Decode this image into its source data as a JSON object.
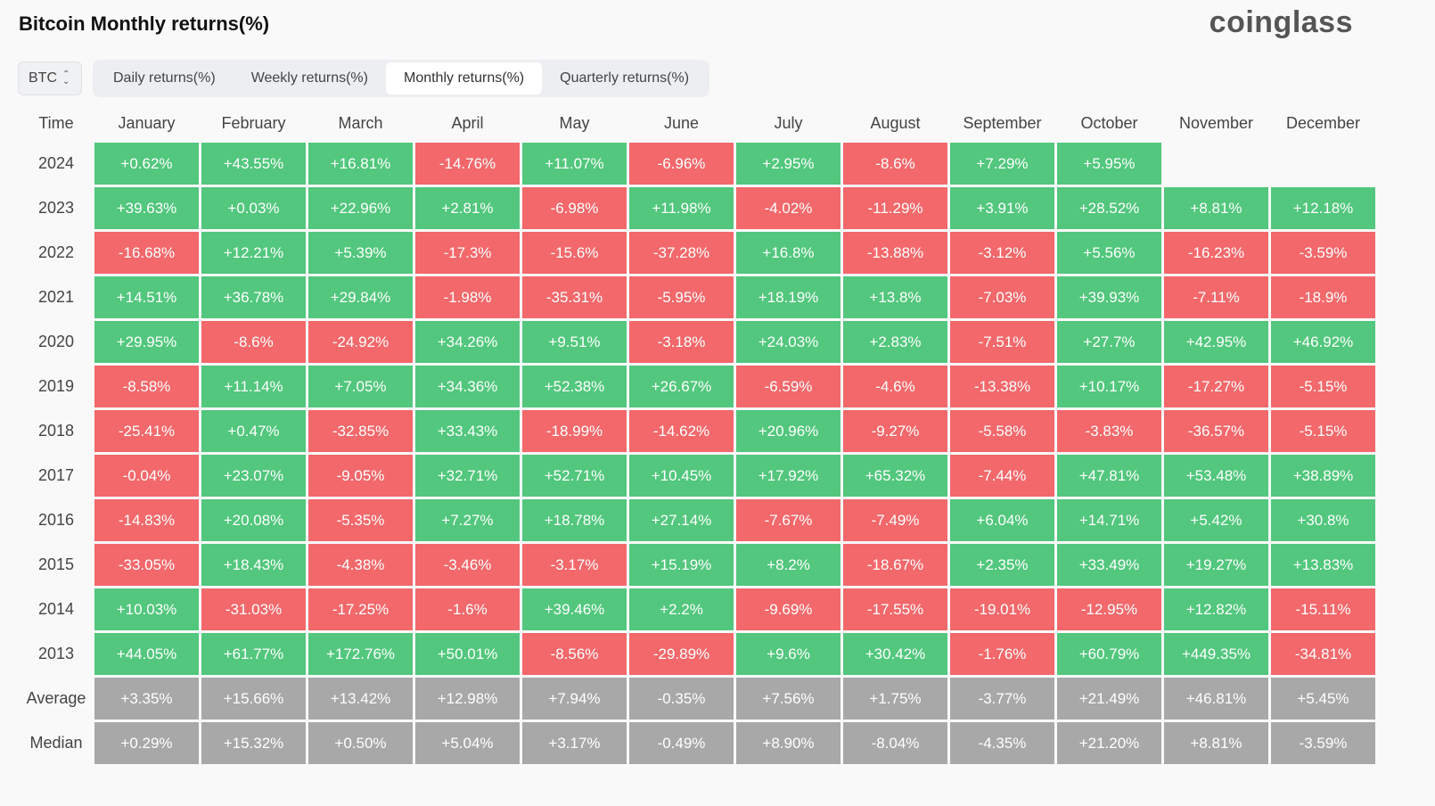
{
  "title": "Bitcoin Monthly returns(%)",
  "brand": "coinglass",
  "coin_select": {
    "value": "BTC",
    "icon": "chevron-updown-icon"
  },
  "tabs": [
    {
      "label": "Daily returns(%)",
      "active": false
    },
    {
      "label": "Weekly returns(%)",
      "active": false
    },
    {
      "label": "Monthly returns(%)",
      "active": true
    },
    {
      "label": "Quarterly returns(%)",
      "active": false
    }
  ],
  "colors": {
    "positive": "#52c77d",
    "negative": "#f2686b",
    "summary": "#a8a8a8"
  },
  "chart_data": {
    "type": "heatmap",
    "corner_label": "Time",
    "columns": [
      "January",
      "February",
      "March",
      "April",
      "May",
      "June",
      "July",
      "August",
      "September",
      "October",
      "November",
      "December"
    ],
    "rows": [
      {
        "label": "2024",
        "kind": "year",
        "values": [
          "+0.62%",
          "+43.55%",
          "+16.81%",
          "-14.76%",
          "+11.07%",
          "-6.96%",
          "+2.95%",
          "-8.6%",
          "+7.29%",
          "+5.95%",
          "",
          ""
        ]
      },
      {
        "label": "2023",
        "kind": "year",
        "values": [
          "+39.63%",
          "+0.03%",
          "+22.96%",
          "+2.81%",
          "-6.98%",
          "+11.98%",
          "-4.02%",
          "-11.29%",
          "+3.91%",
          "+28.52%",
          "+8.81%",
          "+12.18%"
        ]
      },
      {
        "label": "2022",
        "kind": "year",
        "values": [
          "-16.68%",
          "+12.21%",
          "+5.39%",
          "-17.3%",
          "-15.6%",
          "-37.28%",
          "+16.8%",
          "-13.88%",
          "-3.12%",
          "+5.56%",
          "-16.23%",
          "-3.59%"
        ]
      },
      {
        "label": "2021",
        "kind": "year",
        "values": [
          "+14.51%",
          "+36.78%",
          "+29.84%",
          "-1.98%",
          "-35.31%",
          "-5.95%",
          "+18.19%",
          "+13.8%",
          "-7.03%",
          "+39.93%",
          "-7.11%",
          "-18.9%"
        ]
      },
      {
        "label": "2020",
        "kind": "year",
        "values": [
          "+29.95%",
          "-8.6%",
          "-24.92%",
          "+34.26%",
          "+9.51%",
          "-3.18%",
          "+24.03%",
          "+2.83%",
          "-7.51%",
          "+27.7%",
          "+42.95%",
          "+46.92%"
        ]
      },
      {
        "label": "2019",
        "kind": "year",
        "values": [
          "-8.58%",
          "+11.14%",
          "+7.05%",
          "+34.36%",
          "+52.38%",
          "+26.67%",
          "-6.59%",
          "-4.6%",
          "-13.38%",
          "+10.17%",
          "-17.27%",
          "-5.15%"
        ]
      },
      {
        "label": "2018",
        "kind": "year",
        "values": [
          "-25.41%",
          "+0.47%",
          "-32.85%",
          "+33.43%",
          "-18.99%",
          "-14.62%",
          "+20.96%",
          "-9.27%",
          "-5.58%",
          "-3.83%",
          "-36.57%",
          "-5.15%"
        ]
      },
      {
        "label": "2017",
        "kind": "year",
        "values": [
          "-0.04%",
          "+23.07%",
          "-9.05%",
          "+32.71%",
          "+52.71%",
          "+10.45%",
          "+17.92%",
          "+65.32%",
          "-7.44%",
          "+47.81%",
          "+53.48%",
          "+38.89%"
        ]
      },
      {
        "label": "2016",
        "kind": "year",
        "values": [
          "-14.83%",
          "+20.08%",
          "-5.35%",
          "+7.27%",
          "+18.78%",
          "+27.14%",
          "-7.67%",
          "-7.49%",
          "+6.04%",
          "+14.71%",
          "+5.42%",
          "+30.8%"
        ]
      },
      {
        "label": "2015",
        "kind": "year",
        "values": [
          "-33.05%",
          "+18.43%",
          "-4.38%",
          "-3.46%",
          "-3.17%",
          "+15.19%",
          "+8.2%",
          "-18.67%",
          "+2.35%",
          "+33.49%",
          "+19.27%",
          "+13.83%"
        ]
      },
      {
        "label": "2014",
        "kind": "year",
        "values": [
          "+10.03%",
          "-31.03%",
          "-17.25%",
          "-1.6%",
          "+39.46%",
          "+2.2%",
          "-9.69%",
          "-17.55%",
          "-19.01%",
          "-12.95%",
          "+12.82%",
          "-15.11%"
        ]
      },
      {
        "label": "2013",
        "kind": "year",
        "values": [
          "+44.05%",
          "+61.77%",
          "+172.76%",
          "+50.01%",
          "-8.56%",
          "-29.89%",
          "+9.6%",
          "+30.42%",
          "-1.76%",
          "+60.79%",
          "+449.35%",
          "-34.81%"
        ]
      },
      {
        "label": "Average",
        "kind": "summary",
        "values": [
          "+3.35%",
          "+15.66%",
          "+13.42%",
          "+12.98%",
          "+7.94%",
          "-0.35%",
          "+7.56%",
          "+1.75%",
          "-3.77%",
          "+21.49%",
          "+46.81%",
          "+5.45%"
        ]
      },
      {
        "label": "Median",
        "kind": "summary",
        "values": [
          "+0.29%",
          "+15.32%",
          "+0.50%",
          "+5.04%",
          "+3.17%",
          "-0.49%",
          "+8.90%",
          "-8.04%",
          "-4.35%",
          "+21.20%",
          "+8.81%",
          "-3.59%"
        ]
      }
    ]
  }
}
